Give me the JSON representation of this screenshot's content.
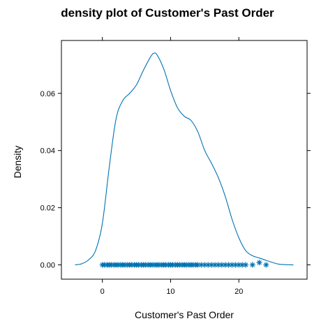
{
  "chart_data": {
    "type": "density",
    "title": "density plot of Customer's Past Order",
    "xlabel": "Customer's Past Order",
    "ylabel": "Density",
    "xlim": [
      -6,
      30
    ],
    "ylim": [
      -0.005,
      0.0785
    ],
    "x_ticks": [
      0,
      10,
      20
    ],
    "x_tick_labels": [
      "0",
      "10",
      "20"
    ],
    "y_ticks": [
      0.0,
      0.02,
      0.04,
      0.06
    ],
    "y_tick_labels": [
      "0.00",
      "0.02",
      "0.04",
      "0.06"
    ],
    "series_color": "#0072B2",
    "density_curve": {
      "x": [
        -4,
        -3,
        -2,
        -1,
        0,
        1,
        2,
        3,
        4,
        5,
        6,
        7,
        7.5,
        8,
        9,
        10,
        11,
        12,
        13,
        14,
        15,
        16,
        17,
        18,
        19,
        20,
        21,
        22,
        23,
        24,
        25,
        26,
        28
      ],
      "y": [
        0.0,
        0.0004,
        0.0018,
        0.005,
        0.0145,
        0.034,
        0.051,
        0.0575,
        0.06,
        0.063,
        0.068,
        0.0725,
        0.074,
        0.0735,
        0.0685,
        0.061,
        0.055,
        0.052,
        0.0505,
        0.0465,
        0.04,
        0.0355,
        0.0305,
        0.024,
        0.016,
        0.0095,
        0.005,
        0.0032,
        0.0024,
        0.0016,
        0.0008,
        0.0002,
        0.0
      ]
    },
    "rug_points": {
      "marker": "*",
      "x": [
        0,
        0.3,
        0.7,
        1,
        1.3,
        1.7,
        2,
        2.3,
        2.7,
        3,
        3.3,
        3.7,
        4,
        4.3,
        4.7,
        5,
        5.3,
        5.7,
        6,
        6.3,
        6.7,
        7,
        7.3,
        7.7,
        8,
        8.3,
        8.7,
        9,
        9.3,
        9.7,
        10,
        10.3,
        10.7,
        11,
        11.3,
        11.7,
        12,
        12.3,
        12.7,
        13,
        13.3,
        13.7,
        14,
        14.5,
        15,
        15.5,
        16,
        16.5,
        17,
        17.5,
        18,
        18.5,
        19,
        19.5,
        20,
        20.5,
        21,
        22,
        23,
        24
      ],
      "y": [
        0,
        0,
        0,
        0,
        0,
        0,
        0,
        0,
        0,
        0,
        0,
        0,
        0,
        0,
        0,
        0,
        0,
        0,
        0,
        0,
        0,
        0,
        0,
        0,
        0,
        0,
        0,
        0,
        0,
        0,
        0,
        0,
        0,
        0,
        0,
        0,
        0,
        0,
        0,
        0,
        0,
        0,
        0,
        0,
        0,
        0,
        0,
        0,
        0,
        0,
        0,
        0,
        0,
        0,
        0,
        0,
        0,
        0,
        0.0008,
        0
      ]
    }
  }
}
